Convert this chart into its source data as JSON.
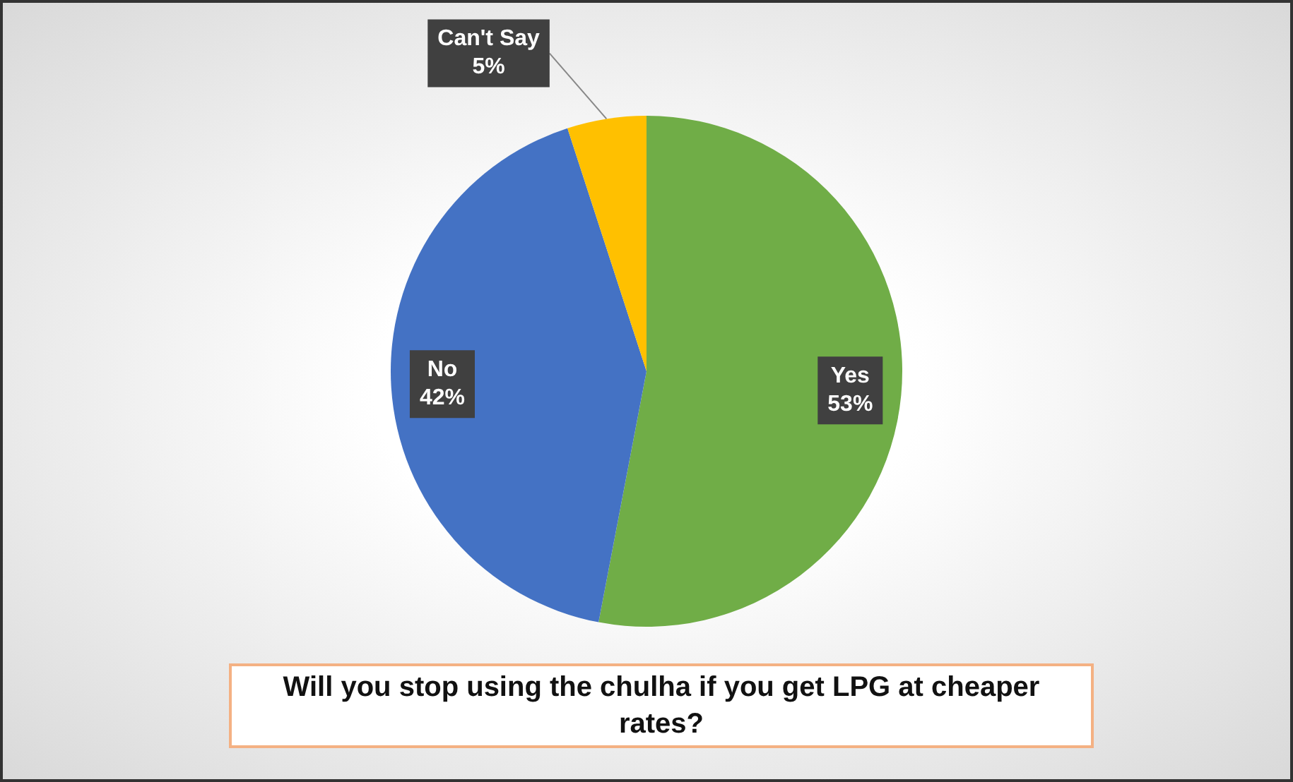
{
  "chart_data": {
    "type": "pie",
    "title": "Will you stop using the chulha if you get LPG at cheaper rates?",
    "categories": [
      "Yes",
      "No",
      "Can't Say"
    ],
    "values": [
      53,
      42,
      5
    ],
    "colors": [
      "#70ad47",
      "#4472c4",
      "#ffc000"
    ],
    "value_labels": [
      "53%",
      "42%",
      "5%"
    ],
    "legend": false
  }
}
